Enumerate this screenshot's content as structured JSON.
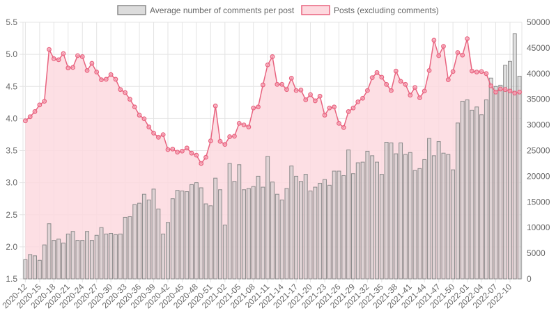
{
  "chart_data": {
    "type": "bar-line-combo",
    "grid": true,
    "legend_position": "top",
    "colors": {
      "bar_fill": "#c9c9c9",
      "bar_stroke": "#8a8a8a",
      "line": "#e8637f",
      "area_fill": "#fdd9df",
      "point_fill": "#f7a3b5",
      "grid": "#e4e4e4"
    },
    "x_axis": {
      "tick_labels": [
        "2020-12",
        "2020-15",
        "2020-18",
        "2020-21",
        "2020-24",
        "2020-27",
        "2020-30",
        "2020-33",
        "2020-36",
        "2020-39",
        "2020-42",
        "2020-45",
        "2020-48",
        "2020-51",
        "2021-02",
        "2021-05",
        "2021-08",
        "2021-11",
        "2021-14",
        "2021-17",
        "2021-20",
        "2021-23",
        "2021-26",
        "2021-29",
        "2021-32",
        "2021-35",
        "2021-38",
        "2021-41",
        "2021-44",
        "2021-47",
        "2021-50",
        "2022-01",
        "2022-04",
        "2022-07",
        "2022-10"
      ]
    },
    "y_axis_left": {
      "ylim": [
        1.5,
        5.5
      ],
      "ticks": [
        "1.5",
        "2.0",
        "2.5",
        "3.0",
        "3.5",
        "4.0",
        "4.5",
        "5.0",
        "5.5"
      ]
    },
    "y_axis_right": {
      "ylim": [
        0,
        50000
      ],
      "ticks": [
        "0",
        "5000",
        "10000",
        "15000",
        "20000",
        "25000",
        "30000",
        "35000",
        "40000",
        "45000",
        "50000"
      ]
    },
    "series": [
      {
        "name": "Average number of comments per post",
        "type": "bar",
        "axis": "left",
        "values": [
          1.8,
          1.88,
          1.86,
          1.79,
          2.03,
          2.36,
          2.1,
          2.12,
          2.06,
          2.2,
          2.24,
          2.1,
          2.1,
          2.24,
          2.1,
          2.18,
          2.3,
          2.2,
          2.21,
          2.19,
          2.2,
          2.46,
          2.47,
          2.66,
          2.68,
          2.82,
          2.73,
          2.9,
          2.59,
          2.2,
          2.38,
          2.75,
          2.88,
          2.87,
          2.86,
          2.97,
          3.0,
          2.92,
          2.67,
          2.64,
          3.07,
          2.89,
          2.34,
          3.3,
          3.02,
          3.28,
          2.89,
          2.91,
          2.94,
          3.1,
          2.93,
          3.41,
          3.01,
          2.82,
          2.73,
          2.91,
          3.26,
          3.1,
          3.02,
          3.13,
          2.87,
          2.93,
          2.99,
          3.05,
          2.96,
          3.18,
          3.18,
          3.11,
          3.51,
          3.14,
          3.31,
          3.32,
          3.49,
          3.42,
          3.32,
          3.13,
          3.63,
          3.62,
          3.45,
          3.62,
          3.44,
          3.47,
          3.19,
          3.22,
          3.36,
          3.69,
          3.42,
          3.64,
          3.46,
          3.44,
          3.2,
          3.93,
          4.27,
          4.29,
          4.13,
          4.18,
          4.06,
          4.29,
          4.63,
          4.5,
          4.52,
          4.83,
          4.89,
          5.32,
          4.66
        ]
      },
      {
        "name": "Posts (excluding comments)",
        "type": "area-line",
        "axis": "right",
        "values": [
          30800,
          31600,
          32600,
          33900,
          34600,
          44700,
          42900,
          42700,
          43900,
          41100,
          41200,
          43500,
          43300,
          40600,
          42000,
          40300,
          38800,
          38900,
          39800,
          38900,
          36900,
          36300,
          35000,
          33500,
          31900,
          31200,
          29600,
          28400,
          27600,
          28100,
          25200,
          25300,
          24700,
          24900,
          25500,
          24500,
          24100,
          22500,
          23700,
          26900,
          33700,
          26800,
          26200,
          27700,
          27800,
          30300,
          30000,
          29600,
          33300,
          33500,
          37800,
          41700,
          43300,
          37900,
          37900,
          36900,
          39100,
          36700,
          36800,
          34900,
          35900,
          34700,
          35600,
          31900,
          33300,
          33500,
          30300,
          29500,
          32600,
          33300,
          34500,
          35200,
          36700,
          39200,
          40200,
          39300,
          37900,
          36700,
          40500,
          38500,
          37900,
          35800,
          37300,
          35300,
          36600,
          40600,
          46500,
          43500,
          45300,
          38800,
          40400,
          44100,
          43600,
          46800,
          40500,
          40300,
          40400,
          40000,
          37600,
          36400,
          37000,
          36900,
          36600,
          36200,
          36400
        ]
      }
    ]
  }
}
